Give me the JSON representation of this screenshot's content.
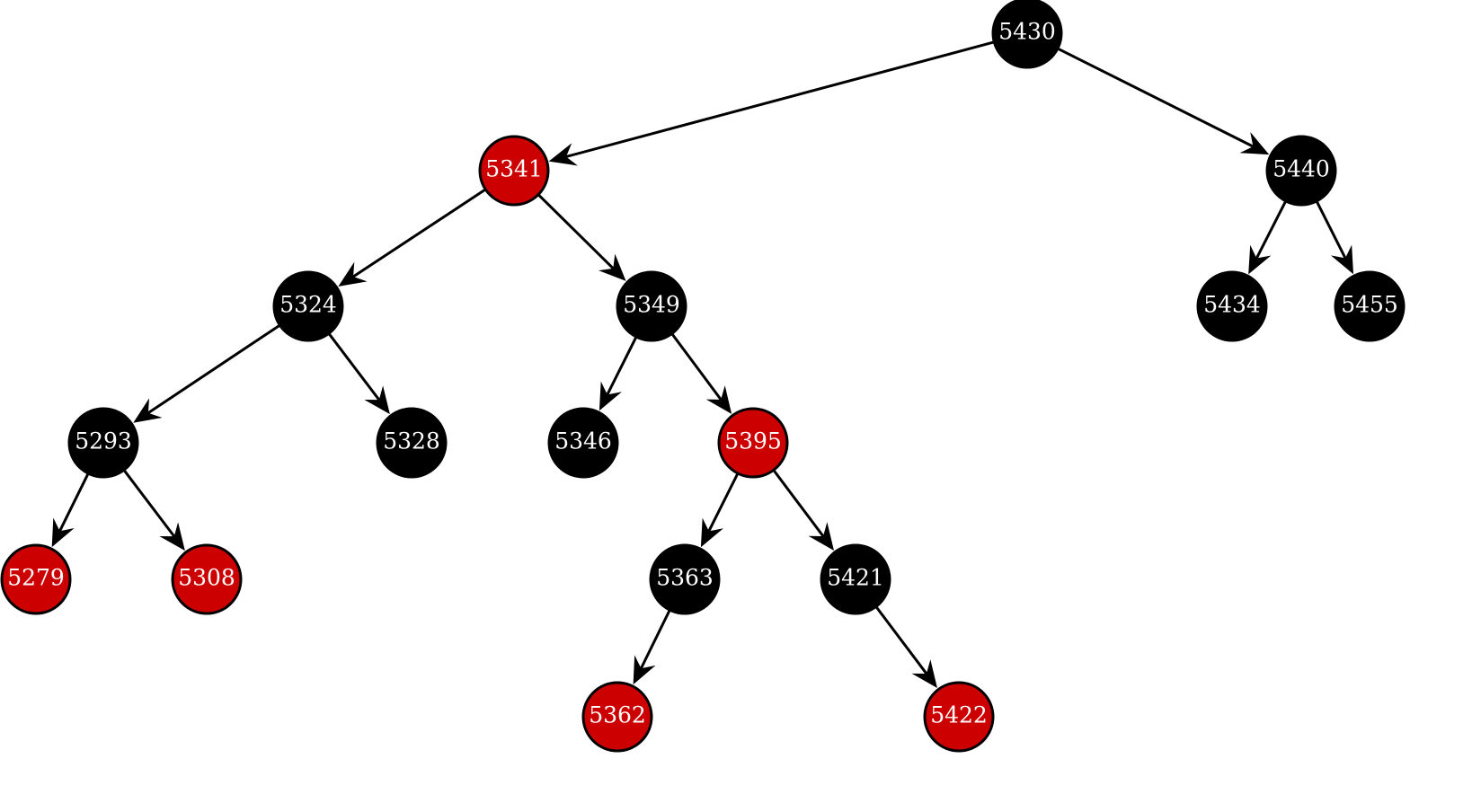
{
  "nodes": [
    {
      "label": "5430",
      "color": "#000000"
    },
    {
      "label": "5341",
      "color": "#cc0000"
    },
    {
      "label": "5440",
      "color": "#000000"
    },
    {
      "label": "5324",
      "color": "#000000"
    },
    {
      "label": "5349",
      "color": "#000000"
    },
    {
      "label": "5434",
      "color": "#000000"
    },
    {
      "label": "5455",
      "color": "#000000"
    },
    {
      "label": "5293",
      "color": "#000000"
    },
    {
      "label": "5328",
      "color": "#000000"
    },
    {
      "label": "5346",
      "color": "#000000"
    },
    {
      "label": "5395",
      "color": "#cc0000"
    },
    {
      "label": "5279",
      "color": "#cc0000"
    },
    {
      "label": "5308",
      "color": "#cc0000"
    },
    {
      "label": "5363",
      "color": "#000000"
    },
    {
      "label": "5421",
      "color": "#000000"
    },
    {
      "label": "5362",
      "color": "#cc0000"
    },
    {
      "label": "5422",
      "color": "#cc0000"
    }
  ]
}
